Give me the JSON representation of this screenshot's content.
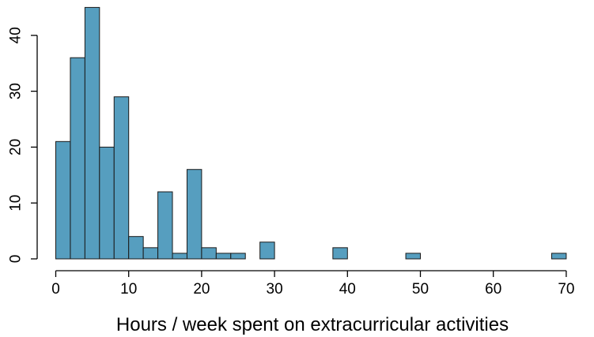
{
  "chart_data": {
    "type": "bar",
    "subtype": "histogram",
    "xlabel": "Hours / week spent on extracurricular activities",
    "ylabel": "",
    "title": "",
    "bin_width": 2,
    "x_range": [
      0,
      72
    ],
    "bins": [
      {
        "start": 0,
        "end": 2,
        "count": 21
      },
      {
        "start": 2,
        "end": 4,
        "count": 36
      },
      {
        "start": 4,
        "end": 6,
        "count": 45
      },
      {
        "start": 6,
        "end": 8,
        "count": 20
      },
      {
        "start": 8,
        "end": 10,
        "count": 29
      },
      {
        "start": 10,
        "end": 12,
        "count": 4
      },
      {
        "start": 12,
        "end": 14,
        "count": 2
      },
      {
        "start": 14,
        "end": 16,
        "count": 12
      },
      {
        "start": 16,
        "end": 18,
        "count": 1
      },
      {
        "start": 18,
        "end": 20,
        "count": 16
      },
      {
        "start": 20,
        "end": 22,
        "count": 2
      },
      {
        "start": 22,
        "end": 24,
        "count": 1
      },
      {
        "start": 24,
        "end": 26,
        "count": 1
      },
      {
        "start": 26,
        "end": 28,
        "count": 0
      },
      {
        "start": 28,
        "end": 30,
        "count": 3
      },
      {
        "start": 30,
        "end": 32,
        "count": 0
      },
      {
        "start": 32,
        "end": 34,
        "count": 0
      },
      {
        "start": 34,
        "end": 36,
        "count": 0
      },
      {
        "start": 36,
        "end": 38,
        "count": 0
      },
      {
        "start": 38,
        "end": 40,
        "count": 2
      },
      {
        "start": 40,
        "end": 42,
        "count": 0
      },
      {
        "start": 42,
        "end": 44,
        "count": 0
      },
      {
        "start": 44,
        "end": 46,
        "count": 0
      },
      {
        "start": 46,
        "end": 48,
        "count": 0
      },
      {
        "start": 48,
        "end": 50,
        "count": 1
      },
      {
        "start": 50,
        "end": 52,
        "count": 0
      },
      {
        "start": 52,
        "end": 54,
        "count": 0
      },
      {
        "start": 54,
        "end": 56,
        "count": 0
      },
      {
        "start": 56,
        "end": 58,
        "count": 0
      },
      {
        "start": 58,
        "end": 60,
        "count": 0
      },
      {
        "start": 60,
        "end": 62,
        "count": 0
      },
      {
        "start": 62,
        "end": 64,
        "count": 0
      },
      {
        "start": 64,
        "end": 66,
        "count": 0
      },
      {
        "start": 66,
        "end": 68,
        "count": 0
      },
      {
        "start": 68,
        "end": 70,
        "count": 1
      }
    ],
    "xticks": [
      0,
      10,
      20,
      30,
      40,
      50,
      60,
      70
    ],
    "yticks": [
      0,
      10,
      20,
      30,
      40
    ],
    "ylim": [
      0,
      45
    ],
    "bar_color": "#569EBF",
    "grid": false,
    "legend": "none"
  }
}
